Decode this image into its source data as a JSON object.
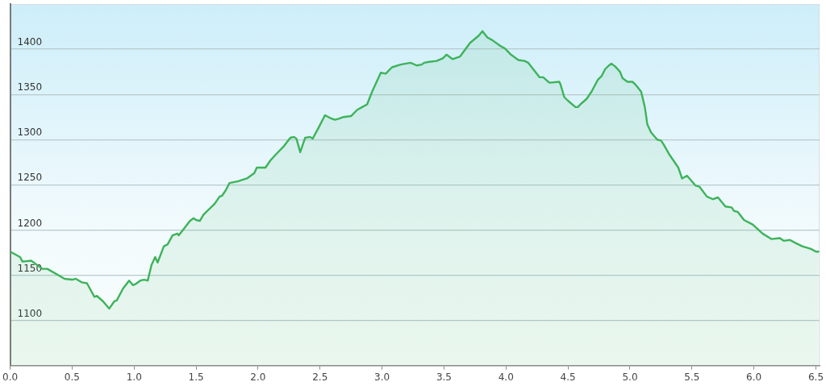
{
  "chart_data": {
    "type": "area",
    "color": "#3db35b",
    "marker": "none",
    "line_style": "solid",
    "grid": "y",
    "xlim": [
      0,
      6.53
    ],
    "ylim": [
      1050,
      1450
    ],
    "xticks": [
      {
        "value": 0,
        "label": "0.0"
      },
      {
        "value": 0.5,
        "label": "0.5"
      },
      {
        "value": 1,
        "label": "1.0"
      },
      {
        "value": 1.5,
        "label": "1.5"
      },
      {
        "value": 2,
        "label": "2.0"
      },
      {
        "value": 2.5,
        "label": "2.5"
      },
      {
        "value": 3,
        "label": "3.0"
      },
      {
        "value": 3.5,
        "label": "3.5"
      },
      {
        "value": 4,
        "label": "4.0"
      },
      {
        "value": 4.5,
        "label": "4.5"
      },
      {
        "value": 5,
        "label": "5.0"
      },
      {
        "value": 5.5,
        "label": "5.5"
      },
      {
        "value": 6,
        "label": "6.0"
      },
      {
        "value": 6.5,
        "label": "6.5"
      }
    ],
    "yticks": [
      1100,
      1150,
      1200,
      1250,
      1300,
      1350,
      1400
    ],
    "x": [
      0,
      0.08,
      0.1,
      0.17,
      0.22,
      0.26,
      0.3,
      0.44,
      0.5,
      0.53,
      0.58,
      0.62,
      0.68,
      0.7,
      0.75,
      0.8,
      0.84,
      0.86,
      0.91,
      0.96,
      0.99,
      1.01,
      1.05,
      1.08,
      1.11,
      1.14,
      1.17,
      1.19,
      1.24,
      1.27,
      1.31,
      1.35,
      1.36,
      1.4,
      1.45,
      1.48,
      1.5,
      1.53,
      1.56,
      1.65,
      1.69,
      1.71,
      1.74,
      1.77,
      1.84,
      1.91,
      1.97,
      1.99,
      2.06,
      2.1,
      2.14,
      2.21,
      2.26,
      2.29,
      2.31,
      2.34,
      2.38,
      2.42,
      2.44,
      2.48,
      2.54,
      2.58,
      2.62,
      2.65,
      2.69,
      2.75,
      2.8,
      2.84,
      2.88,
      2.92,
      2.99,
      3.03,
      3.08,
      3.15,
      3.23,
      3.28,
      3.32,
      3.34,
      3.38,
      3.44,
      3.49,
      3.52,
      3.57,
      3.63,
      3.71,
      3.78,
      3.81,
      3.85,
      3.89,
      3.95,
      3.99,
      4.04,
      4.1,
      4.15,
      4.18,
      4.27,
      4.3,
      4.35,
      4.43,
      4.44,
      4.47,
      4.5,
      4.56,
      4.58,
      4.6,
      4.65,
      4.69,
      4.74,
      4.77,
      4.8,
      4.83,
      4.85,
      4.88,
      4.92,
      4.94,
      4.98,
      5.02,
      5.05,
      5.09,
      5.12,
      5.14,
      5.17,
      5.22,
      5.25,
      5.27,
      5.32,
      5.39,
      5.42,
      5.46,
      5.48,
      5.53,
      5.56,
      5.62,
      5.67,
      5.71,
      5.77,
      5.82,
      5.84,
      5.87,
      5.92,
      5.99,
      6.07,
      6.14,
      6.21,
      6.24,
      6.29,
      6.33,
      6.39,
      6.46,
      6.5,
      6.52
    ],
    "values": [
      1176,
      1170,
      1165,
      1166,
      1161,
      1157,
      1157,
      1146,
      1145,
      1146,
      1142,
      1141,
      1126,
      1127,
      1121,
      1113,
      1121,
      1122,
      1135,
      1144,
      1139,
      1140,
      1144,
      1145,
      1144,
      1161,
      1170,
      1164,
      1182,
      1184,
      1194,
      1196,
      1194,
      1201,
      1210,
      1213,
      1211,
      1210,
      1217,
      1229,
      1237,
      1238,
      1244,
      1252,
      1254,
      1257,
      1263,
      1269,
      1269,
      1277,
      1283,
      1293,
      1302,
      1303,
      1301,
      1286,
      1302,
      1303,
      1301,
      1311,
      1327,
      1324,
      1322,
      1323,
      1325,
      1326,
      1333,
      1336,
      1339,
      1353,
      1374,
      1373,
      1380,
      1383,
      1385,
      1382,
      1383,
      1385,
      1386,
      1387,
      1390,
      1394,
      1389,
      1392,
      1407,
      1415,
      1420,
      1413,
      1410,
      1404,
      1401,
      1394,
      1388,
      1387,
      1385,
      1369,
      1369,
      1363,
      1364,
      1361,
      1347,
      1343,
      1336,
      1336,
      1339,
      1345,
      1353,
      1366,
      1370,
      1378,
      1382,
      1384,
      1381,
      1375,
      1368,
      1364,
      1364,
      1360,
      1353,
      1336,
      1317,
      1308,
      1300,
      1299,
      1295,
      1283,
      1269,
      1257,
      1260,
      1257,
      1249,
      1248,
      1237,
      1234,
      1236,
      1226,
      1225,
      1221,
      1220,
      1211,
      1206,
      1196,
      1190,
      1191,
      1188,
      1189,
      1186,
      1182,
      1179,
      1176,
      1176
    ]
  }
}
